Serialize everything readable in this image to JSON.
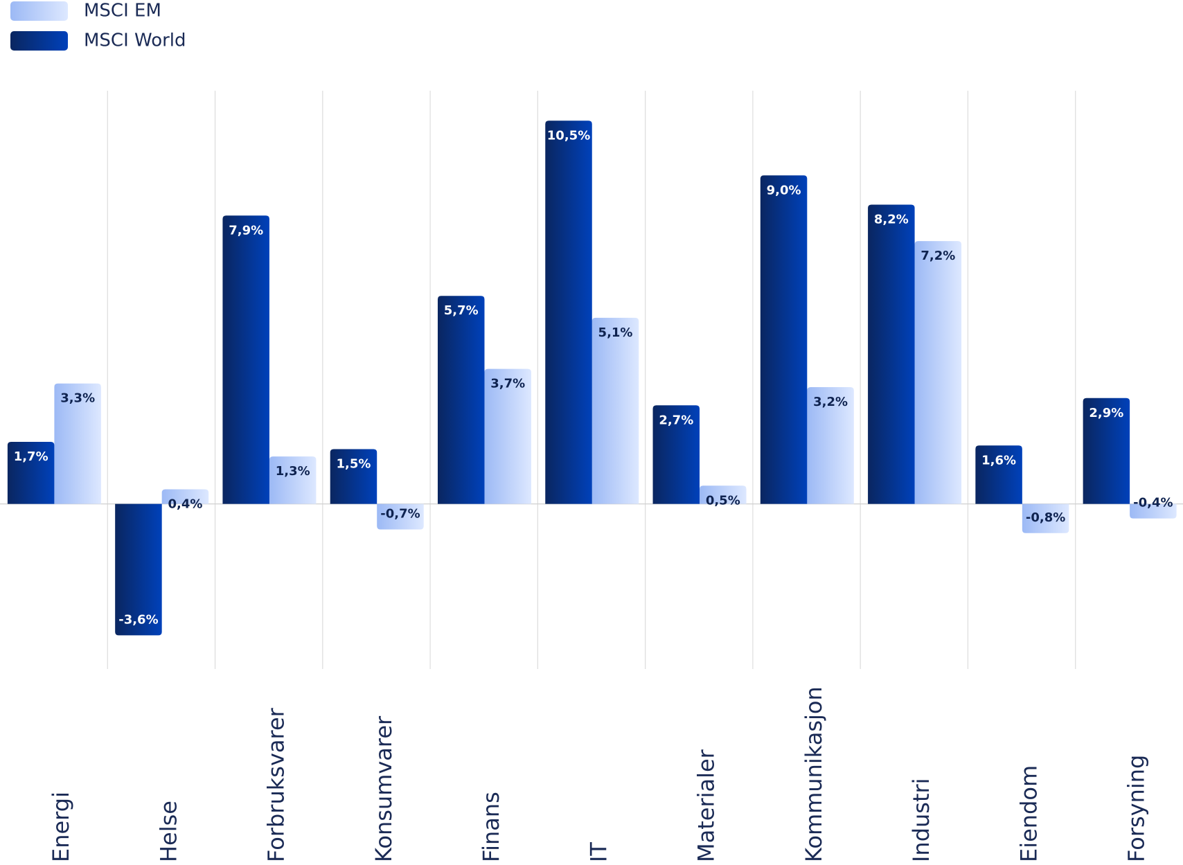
{
  "chart_data": {
    "type": "bar",
    "categories": [
      "Energi",
      "Helse",
      "Forbruksvarer",
      "Konsumvarer",
      "Finans",
      "IT",
      "Materialer",
      "Kommunikasjon",
      "Industri",
      "Eiendom",
      "Forsyning"
    ],
    "series": [
      {
        "name": "MSCI EM",
        "color": "#9cb9f5",
        "color_end": "#dde8ff",
        "values": [
          3.3,
          0.4,
          1.3,
          -0.7,
          3.7,
          5.1,
          0.5,
          3.2,
          7.2,
          -0.8,
          -0.4
        ],
        "value_labels": [
          "3,3%",
          "0,4%",
          "1,3%",
          "-0,7%",
          "3,7%",
          "5,1%",
          "0,5%",
          "3,2%",
          "7,2%",
          "-0,8%",
          "-0,4%"
        ]
      },
      {
        "name": "MSCI World",
        "color": "#0a2660",
        "color_end": "#0041ba",
        "values": [
          1.7,
          -3.6,
          7.9,
          1.5,
          5.7,
          10.5,
          2.7,
          9.0,
          8.2,
          1.6,
          2.9
        ],
        "value_labels": [
          "1,7%",
          "-3,6%",
          "7,9%",
          "1,5%",
          "5,7%",
          "10,5%",
          "2,7%",
          "9,0%",
          "8,2%",
          "1,6%",
          "2,9%"
        ]
      }
    ],
    "legend": "top-left",
    "grid": true
  }
}
